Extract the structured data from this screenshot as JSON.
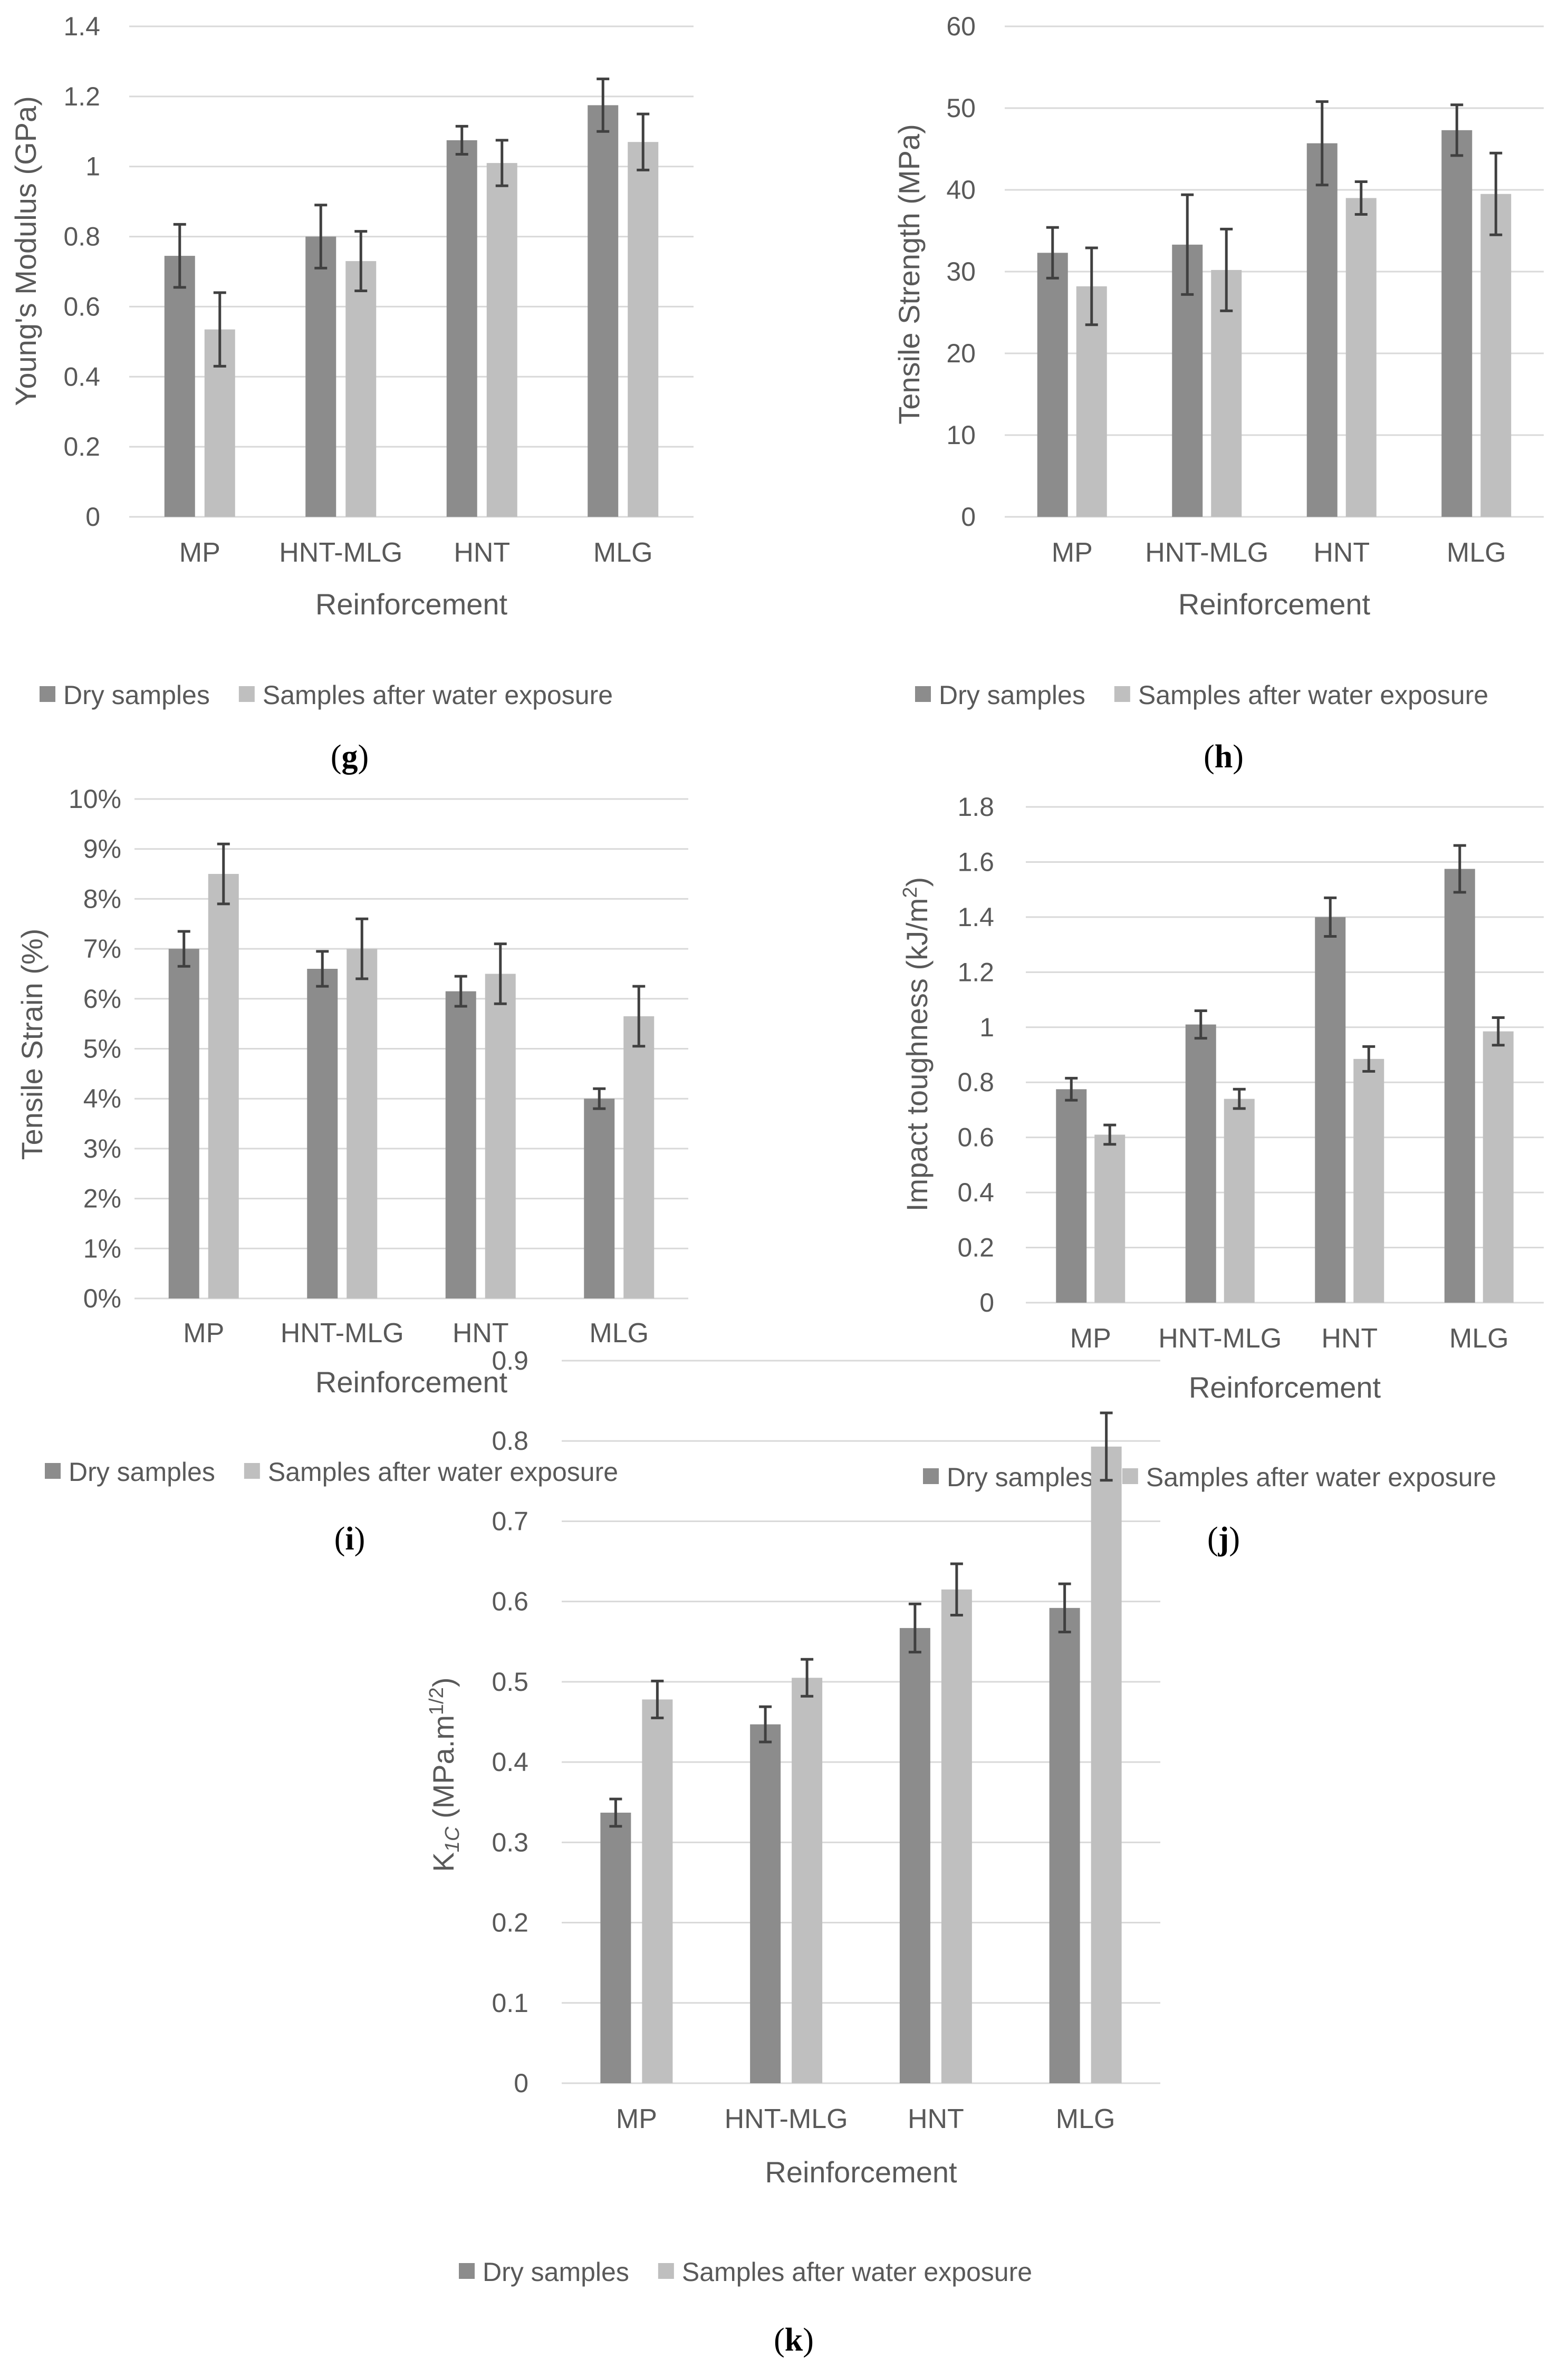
{
  "colors": {
    "dry": "#8c8c8c",
    "wet": "#bfbfbf",
    "grid": "#d9d9d9",
    "text": "#595959",
    "err": "#404040"
  },
  "chart_data": [
    {
      "panel": "g",
      "type": "bar",
      "categories": [
        "MP",
        "HNT-MLG",
        "HNT",
        "MLG"
      ],
      "ylabel": "Young's Modulus (GPa)",
      "xlabel": "Reinforcement",
      "ylim": [
        0,
        1.4
      ],
      "yticks": [
        "0",
        "0.2",
        "0.4",
        "0.6",
        "0.8",
        "1",
        "1.2",
        "1.4"
      ],
      "series": [
        {
          "name": "Dry samples",
          "values": [
            0.745,
            0.8,
            1.075,
            1.175
          ],
          "errors": [
            0.09,
            0.09,
            0.04,
            0.075
          ]
        },
        {
          "name": "Samples after water exposure",
          "values": [
            0.535,
            0.73,
            1.01,
            1.07
          ],
          "errors": [
            0.105,
            0.085,
            0.065,
            0.08
          ]
        }
      ]
    },
    {
      "panel": "h",
      "type": "bar",
      "categories": [
        "MP",
        "HNT-MLG",
        "HNT",
        "MLG"
      ],
      "ylabel": "Tensile Strength (MPa)",
      "xlabel": "Reinforcement",
      "ylim": [
        0,
        60
      ],
      "yticks": [
        "0",
        "10",
        "20",
        "30",
        "40",
        "50",
        "60"
      ],
      "series": [
        {
          "name": "Dry samples",
          "values": [
            32.3,
            33.3,
            45.7,
            47.3
          ],
          "errors": [
            3.1,
            6.1,
            5.1,
            3.1
          ]
        },
        {
          "name": "Samples after water exposure",
          "values": [
            28.2,
            30.2,
            39.0,
            39.5
          ],
          "errors": [
            4.7,
            5.0,
            2.0,
            5.0
          ]
        }
      ]
    },
    {
      "panel": "i",
      "type": "bar",
      "categories": [
        "MP",
        "HNT-MLG",
        "HNT",
        "MLG"
      ],
      "ylabel": "Tensile Strain (%)",
      "xlabel": "Reinforcement",
      "ylim": [
        0,
        10
      ],
      "yticks": [
        "0%",
        "1%",
        "2%",
        "3%",
        "4%",
        "5%",
        "6%",
        "7%",
        "8%",
        "9%",
        "10%"
      ],
      "series": [
        {
          "name": "Dry samples",
          "values": [
            7.0,
            6.6,
            6.15,
            4.0
          ],
          "errors": [
            0.35,
            0.35,
            0.3,
            0.2
          ]
        },
        {
          "name": "Samples after water exposure",
          "values": [
            8.5,
            7.0,
            6.5,
            5.65
          ],
          "errors": [
            0.6,
            0.6,
            0.6,
            0.6
          ]
        }
      ]
    },
    {
      "panel": "j",
      "type": "bar",
      "categories": [
        "MP",
        "HNT-MLG",
        "HNT",
        "MLG"
      ],
      "ylabel": "Impact toughness (kJ/m²)",
      "xlabel": "Reinforcement",
      "ylim": [
        0,
        1.8
      ],
      "yticks": [
        "0",
        "0.2",
        "0.4",
        "0.6",
        "0.8",
        "1",
        "1.2",
        "1.4",
        "1.6",
        "1.8"
      ],
      "series": [
        {
          "name": "Dry samples",
          "values": [
            0.775,
            1.01,
            1.4,
            1.575
          ],
          "errors": [
            0.04,
            0.05,
            0.07,
            0.085
          ]
        },
        {
          "name": "Samples after water exposure",
          "values": [
            0.61,
            0.74,
            0.885,
            0.985
          ],
          "errors": [
            0.035,
            0.035,
            0.045,
            0.05
          ]
        }
      ]
    },
    {
      "panel": "k",
      "type": "bar",
      "categories": [
        "MP",
        "HNT-MLG",
        "HNT",
        "MLG"
      ],
      "ylabel": "K1C (MPa.m1/2)",
      "xlabel": "Reinforcement",
      "ylim": [
        0,
        0.9
      ],
      "yticks": [
        "0",
        "0.1",
        "0.2",
        "0.3",
        "0.4",
        "0.5",
        "0.6",
        "0.7",
        "0.8",
        "0.9"
      ],
      "series": [
        {
          "name": "Dry samples",
          "values": [
            0.337,
            0.447,
            0.567,
            0.592
          ],
          "errors": [
            0.017,
            0.022,
            0.03,
            0.03
          ]
        },
        {
          "name": "Samples after water exposure",
          "values": [
            0.478,
            0.505,
            0.615,
            0.793
          ],
          "errors": [
            0.023,
            0.023,
            0.032,
            0.042
          ]
        }
      ]
    }
  ],
  "labels": {
    "g": "(g)",
    "h": "(h)",
    "i": "(i)",
    "j": "(j)",
    "k": "(k)"
  },
  "ylabel_parts": {
    "j": {
      "main": "Impact toughness (kJ/m",
      "sup": "2",
      "close": ")"
    },
    "k": {
      "k": "K",
      "sub": "1C",
      "mid": " (MPa.m",
      "sup": "1/2",
      "close": ")"
    }
  }
}
